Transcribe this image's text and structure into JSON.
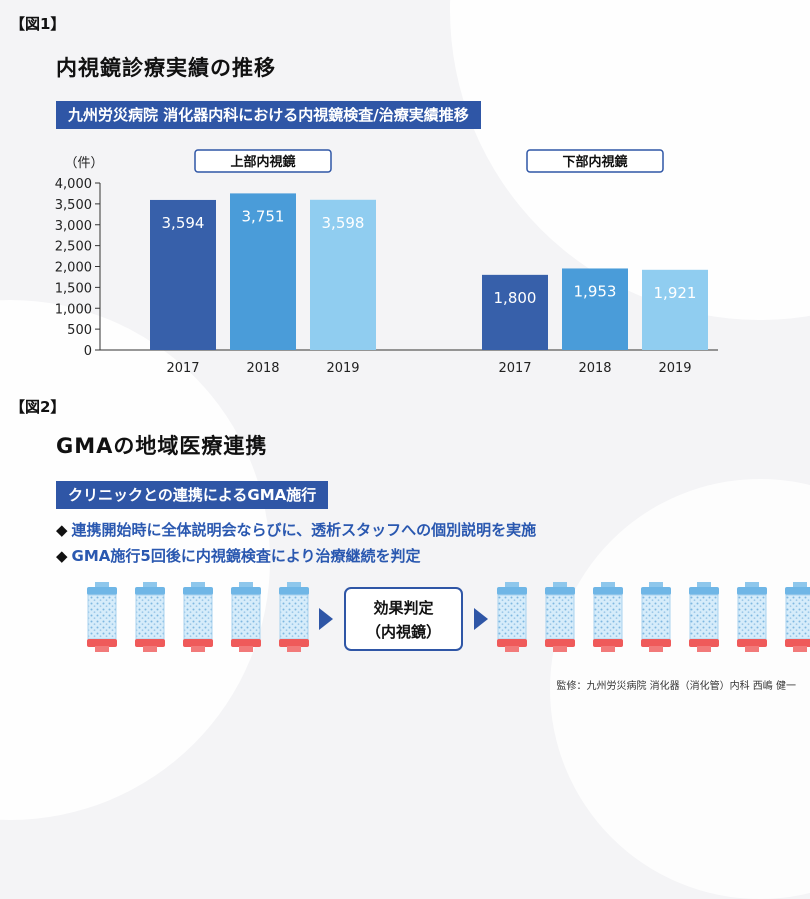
{
  "fig1": {
    "label": "【図1】",
    "title": "内視鏡診療実績の推移",
    "subtitle": "九州労災病院  消化器内科における内視鏡検査/治療実績推移"
  },
  "chart_data": {
    "type": "bar",
    "unit_label": "（件）",
    "ylim": [
      0,
      4000
    ],
    "yticks": [
      0,
      500,
      1000,
      1500,
      2000,
      2500,
      3000,
      3500,
      4000
    ],
    "ytick_labels": [
      "0",
      "500",
      "1,000",
      "1,500",
      "2,000",
      "2,500",
      "3,000",
      "3,500",
      "4,000"
    ],
    "groups": [
      {
        "name": "上部内視鏡",
        "categories": [
          "2017",
          "2018",
          "2019"
        ],
        "values": [
          3594,
          3751,
          3598
        ],
        "value_labels": [
          "3,594",
          "3,751",
          "3,598"
        ]
      },
      {
        "name": "下部内視鏡",
        "categories": [
          "2017",
          "2018",
          "2019"
        ],
        "values": [
          1800,
          1953,
          1921
        ],
        "value_labels": [
          "1,800",
          "1,953",
          "1,921"
        ]
      }
    ],
    "colors": [
      "#3760aa",
      "#4a9cd9",
      "#90cdf0"
    ],
    "grid": false,
    "legend": "none"
  },
  "fig2": {
    "label": "【図2】",
    "title": "GMAの地域医療連携",
    "subtitle": "クリニックとの連携によるGMA施行",
    "bullet_mark": "◆",
    "bullets": [
      "連携開始時に全体説明会ならびに、透析スタッフへの個別説明を実施",
      "GMA施行5回後に内視鏡検査により治療継続を判定"
    ],
    "judge_line1": "効果判定",
    "judge_line2": "（内視鏡）",
    "column_count_left": 5,
    "column_count_right": 7
  },
  "credit": "監修：九州労災病院  消化器（消化管）内科  西嶋  健一"
}
